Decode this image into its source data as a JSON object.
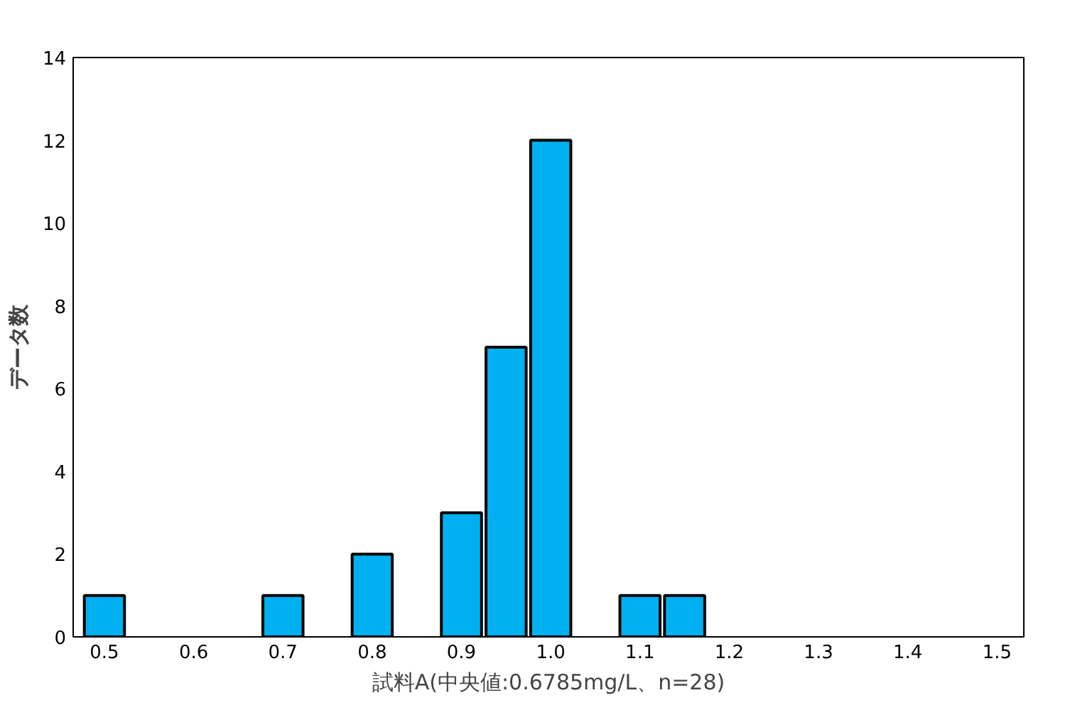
{
  "chart_data": {
    "type": "bar",
    "xlabel": "試料A(中央値:0.6785mg/L、n=28)",
    "ylabel": "データ数",
    "x": [
      0.5,
      0.7,
      0.8,
      0.9,
      0.95,
      1.0,
      1.1,
      1.15
    ],
    "values": [
      1,
      1,
      2,
      3,
      7,
      12,
      1,
      1
    ],
    "color": "#00b0f0",
    "xlim": [
      0.465,
      1.53
    ],
    "ylim": [
      0,
      14
    ],
    "xticks": [
      0.5,
      0.6,
      0.7,
      0.8,
      0.9,
      {
        "value": 1.0,
        "label": "1.0"
      },
      1.1,
      1.2,
      1.3,
      1.4,
      1.5
    ],
    "yticks": [
      0,
      2,
      4,
      6,
      8,
      10,
      12,
      14
    ],
    "grid": false
  }
}
